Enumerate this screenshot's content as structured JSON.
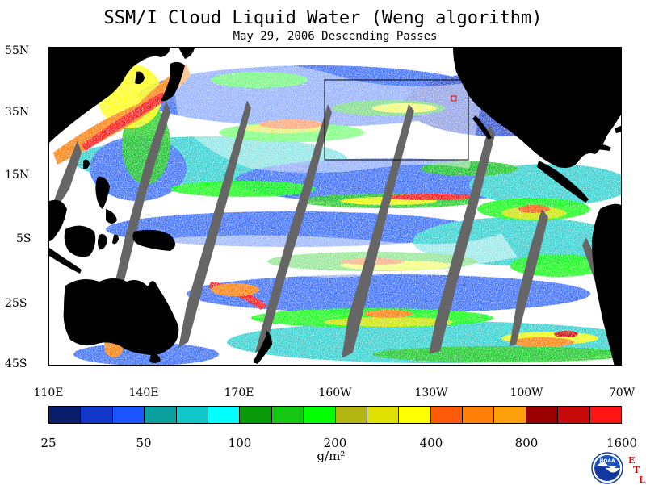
{
  "title": "SSM/I Cloud Liquid Water (Weng algorithm)",
  "subtitle": "May 29, 2006  Descending Passes",
  "map": {
    "lat_labels": [
      "55N",
      "35N",
      "15N",
      "5S",
      "25S",
      "45S"
    ],
    "lon_labels": [
      "110E",
      "140E",
      "170E",
      "160W",
      "130W",
      "100W",
      "70W"
    ],
    "land_color": "#000000",
    "nodata_color": "#666666",
    "ocean_clear_color": "#ffffff",
    "box_outline_color": "#000000"
  },
  "colorbar": {
    "colors": [
      "#0a1e6e",
      "#1237c8",
      "#1a55ff",
      "#0aa0a0",
      "#10c8c8",
      "#00ffff",
      "#0a9b0a",
      "#14c814",
      "#00ff00",
      "#b4b414",
      "#e1e100",
      "#ffff00",
      "#ff5a0a",
      "#ff7f0a",
      "#ffa00a",
      "#9b0000",
      "#c80a0a",
      "#ff1414"
    ],
    "tick_labels": [
      "25",
      "50",
      "100",
      "200",
      "400",
      "800",
      "1600"
    ],
    "unit": "g/m²"
  },
  "logo": {
    "icon": "noaa-logo-icon",
    "text": "NOAA"
  },
  "etl": {
    "letters": [
      "E",
      "T",
      "L"
    ],
    "color": "#e00000"
  }
}
